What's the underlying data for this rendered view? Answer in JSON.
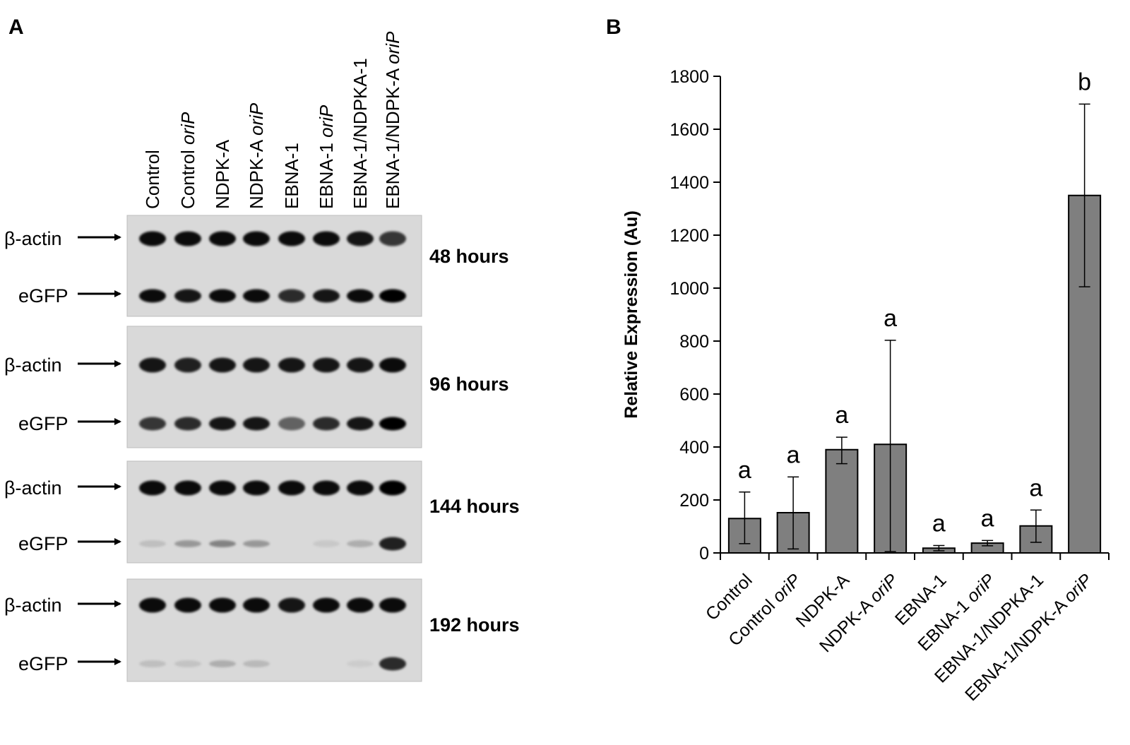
{
  "panel_a": {
    "letter": "A",
    "lanes": [
      {
        "name": "Control",
        "italic": ""
      },
      {
        "name": "Control ",
        "italic": "oriP"
      },
      {
        "name": "NDPK-A",
        "italic": ""
      },
      {
        "name": "NDPK-A ",
        "italic": "oriP"
      },
      {
        "name": "EBNA-1",
        "italic": ""
      },
      {
        "name": "EBNA-1 ",
        "italic": "oriP"
      },
      {
        "name": "EBNA-1/NDPKA-1",
        "italic": ""
      },
      {
        "name": "EBNA-1/NDPK-A ",
        "italic": "oriP"
      }
    ],
    "blots": [
      {
        "time": "48 hours",
        "bands": [
          "β-actin",
          "eGFP"
        ],
        "actin_intensity": [
          0.95,
          0.95,
          0.95,
          0.95,
          0.95,
          0.95,
          0.9,
          0.75
        ],
        "egfp_intensity": [
          0.95,
          0.9,
          0.95,
          0.95,
          0.8,
          0.9,
          0.95,
          1.0
        ]
      },
      {
        "time": "96 hours",
        "bands": [
          "β-actin",
          "eGFP"
        ],
        "actin_intensity": [
          0.9,
          0.85,
          0.9,
          0.9,
          0.9,
          0.9,
          0.9,
          0.95
        ],
        "egfp_intensity": [
          0.75,
          0.8,
          0.9,
          0.9,
          0.55,
          0.8,
          0.9,
          1.0
        ]
      },
      {
        "time": "144 hours",
        "bands": [
          "β-actin",
          "eGFP"
        ],
        "actin_intensity": [
          0.95,
          0.95,
          0.95,
          0.95,
          0.95,
          0.95,
          0.95,
          1.0
        ],
        "egfp_intensity": [
          0.12,
          0.3,
          0.4,
          0.3,
          0.0,
          0.08,
          0.2,
          0.85
        ]
      },
      {
        "time": "192 hours",
        "bands": [
          "β-actin",
          "eGFP"
        ],
        "actin_intensity": [
          0.95,
          0.95,
          0.95,
          0.95,
          0.9,
          0.95,
          0.95,
          0.95
        ],
        "egfp_intensity": [
          0.12,
          0.1,
          0.2,
          0.15,
          0.0,
          0.0,
          0.06,
          0.8
        ]
      }
    ]
  },
  "panel_b": {
    "letter": "B"
  },
  "chart_data": {
    "type": "bar",
    "title": "",
    "xlabel": "",
    "ylabel": "Relative Expression (Au)",
    "ylim": [
      0,
      1800
    ],
    "yticks": [
      0,
      200,
      400,
      600,
      800,
      1000,
      1200,
      1400,
      1600,
      1800
    ],
    "grid": false,
    "categories": [
      {
        "name": "Control",
        "italic": ""
      },
      {
        "name": "Control ",
        "italic": "oriP"
      },
      {
        "name": "NDPK-A",
        "italic": ""
      },
      {
        "name": "NDPK-A ",
        "italic": "oriP"
      },
      {
        "name": "EBNA-1",
        "italic": ""
      },
      {
        "name": "EBNA-1 ",
        "italic": "oriP"
      },
      {
        "name": "EBNA-1/NDPKA-1",
        "italic": ""
      },
      {
        "name": "EBNA-1/NDPK-A ",
        "italic": "oriP"
      }
    ],
    "values": [
      130,
      152,
      390,
      410,
      18,
      37,
      102,
      1350
    ],
    "error_low": [
      35,
      15,
      337,
      5,
      8,
      27,
      40,
      1005
    ],
    "error_high": [
      230,
      287,
      437,
      803,
      28,
      47,
      162,
      1695
    ],
    "significance": [
      "a",
      "a",
      "a",
      "a",
      "a",
      "a",
      "a",
      "b"
    ],
    "bar_color": "#7f7f7f"
  }
}
